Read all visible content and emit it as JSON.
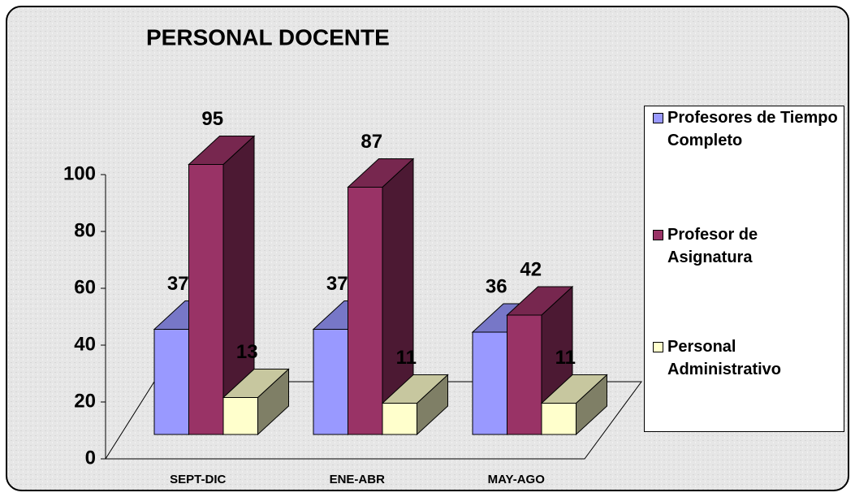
{
  "chart_data": {
    "type": "bar3d",
    "title": "PERSONAL DOCENTE",
    "categories": [
      "SEPT-DIC",
      "ENE-ABR",
      "MAY-AGO"
    ],
    "series": [
      {
        "name": "Profesores de Tiempo Completo",
        "color": "#9999ff",
        "values": [
          37,
          37,
          36
        ]
      },
      {
        "name": "Profesor de Asignatura",
        "color": "#993366",
        "values": [
          95,
          87,
          42
        ]
      },
      {
        "name": "Personal Administrativo",
        "color": "#ffffcc",
        "values": [
          13,
          11,
          11
        ]
      }
    ],
    "ylim": [
      0,
      100
    ],
    "yticks": [
      0,
      20,
      40,
      60,
      80,
      100
    ],
    "legend": "right"
  }
}
